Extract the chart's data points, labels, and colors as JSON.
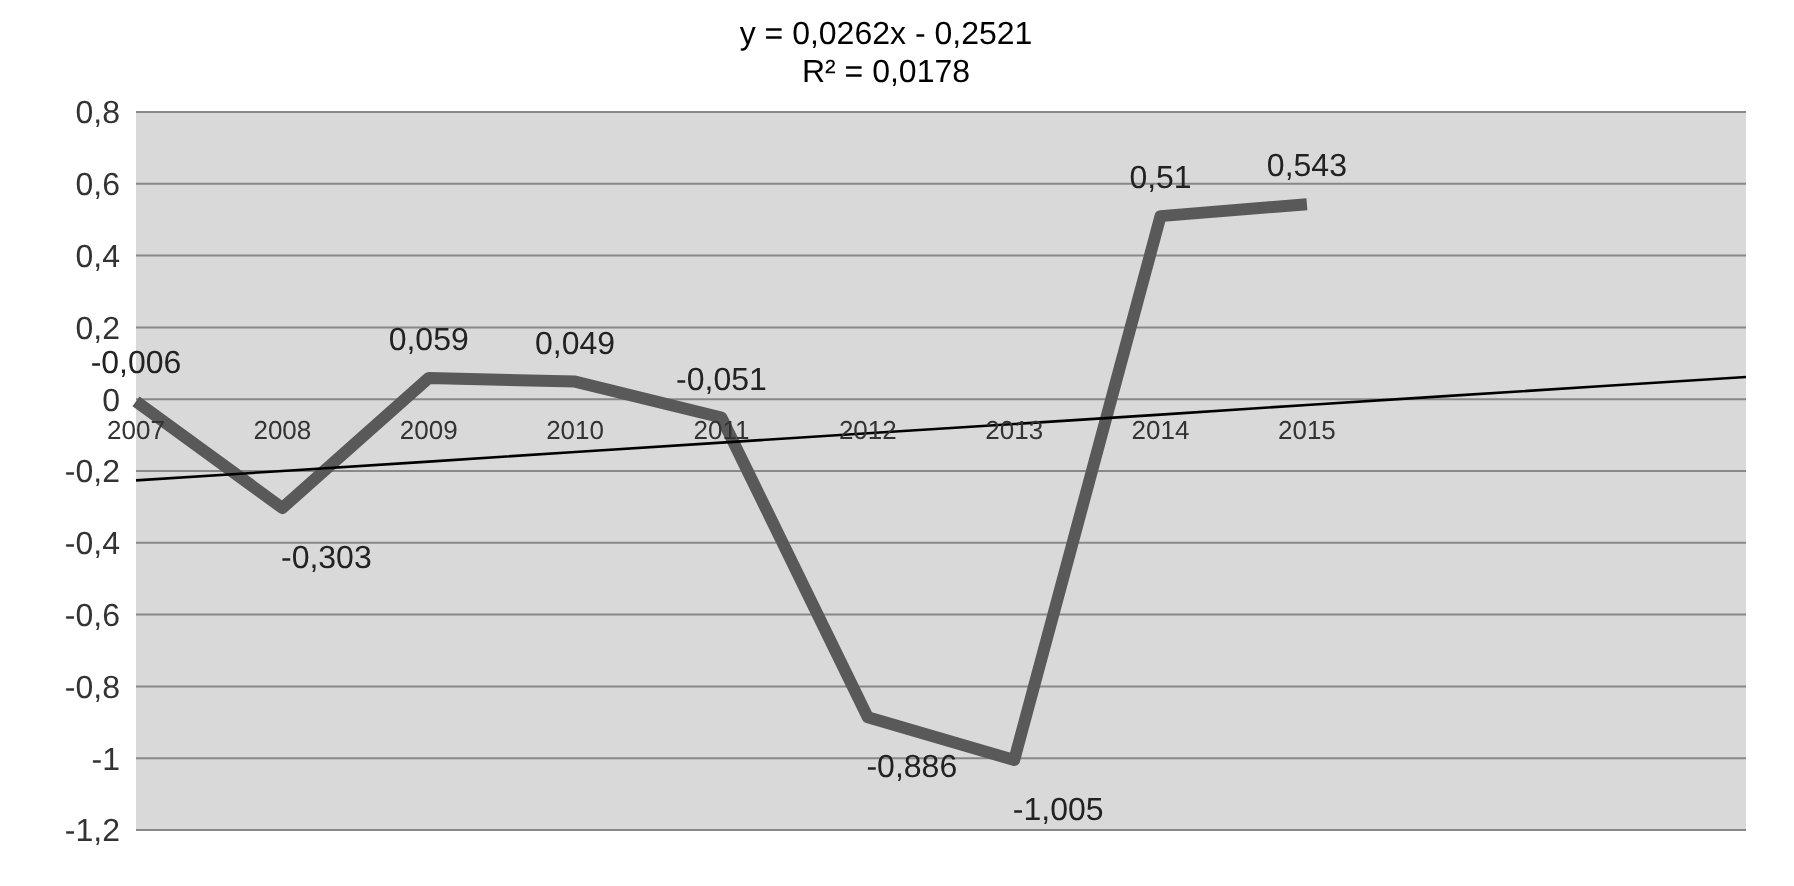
{
  "chart_data": {
    "type": "line",
    "title": "y = 0,0262x - 0,2521",
    "subtitle": "R² = 0,0178",
    "categories": [
      "2007",
      "2008",
      "2009",
      "2010",
      "2011",
      "2012",
      "2013",
      "2014",
      "2015",
      null,
      null,
      null
    ],
    "series": [
      {
        "color": "#595959",
        "values": [
          -0.006,
          -0.303,
          0.059,
          0.049,
          -0.051,
          -0.886,
          -1.005,
          0.51,
          0.543,
          null,
          null,
          null
        ],
        "value_labels": [
          "-0,006",
          "-0,303",
          "0,059",
          "0,049",
          "-0,051",
          "-0,886",
          "-1,005",
          "0,51",
          "0,543",
          null,
          null,
          null
        ]
      },
      {
        "color": "#000000",
        "values": [
          -0.226,
          -0.2,
          -0.174,
          -0.147,
          -0.121,
          -0.095,
          -0.069,
          -0.043,
          -0.016,
          0.01,
          0.036,
          0.062
        ]
      }
    ],
    "ylim": [
      -1.2,
      0.8
    ],
    "yticks": [
      {
        "value": -1.2,
        "label": "-1,2"
      },
      {
        "value": -1,
        "label": "-1"
      },
      {
        "value": -0.8,
        "label": "-0,8"
      },
      {
        "value": -0.6,
        "label": "-0,6"
      },
      {
        "value": -0.4,
        "label": "-0,4"
      },
      {
        "value": -0.2,
        "label": "-0,2"
      },
      {
        "value": 0,
        "label": "0"
      },
      {
        "value": 0.2,
        "label": "0,2"
      },
      {
        "value": 0.4,
        "label": "0,4"
      },
      {
        "value": 0.6,
        "label": "0,6"
      },
      {
        "value": 0.8,
        "label": "0,8"
      }
    ],
    "grid": "y",
    "marker": "none",
    "line_style": "solid"
  }
}
